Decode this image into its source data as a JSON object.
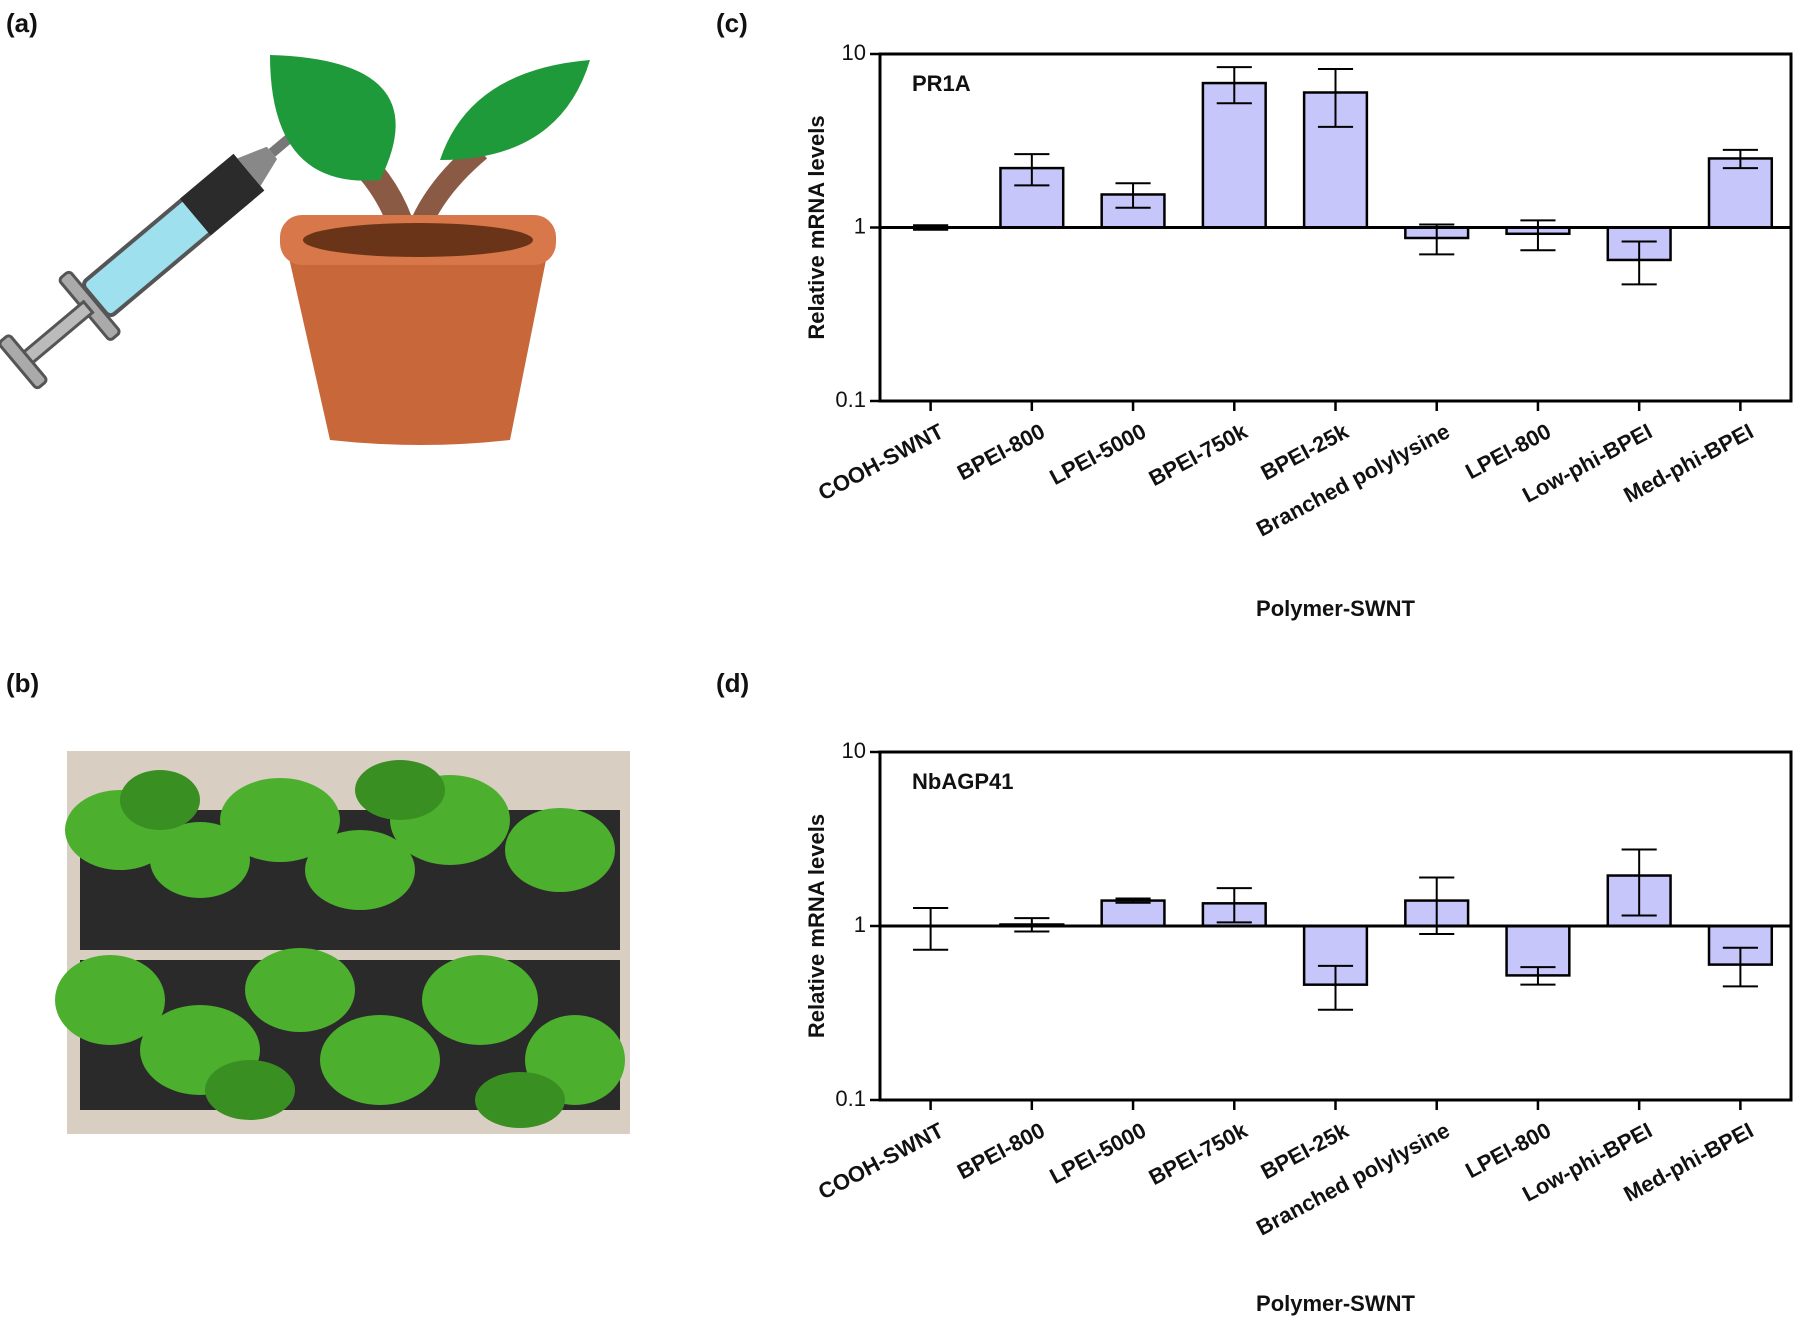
{
  "panel_labels": [
    "(a)",
    "(b)",
    "(c)",
    "(d)"
  ],
  "chart_data": [
    {
      "type": "bar",
      "title": "PR1A",
      "xlabel": "Polymer-SWNT",
      "ylabel": "Relative mRNA levels",
      "categories": [
        "COOH-SWNT",
        "BPEI-800",
        "LPEI-5000",
        "BPEI-750k",
        "BPEI-25k",
        "Branched polylysine",
        "LPEI-800",
        "Low-phi-BPEI",
        "Med-phi-BPEI"
      ],
      "values": [
        1.0,
        2.2,
        1.55,
        6.8,
        6.0,
        0.87,
        0.92,
        0.65,
        2.5
      ],
      "errors": [
        0.03,
        0.45,
        0.25,
        1.6,
        2.2,
        0.17,
        0.18,
        0.18,
        0.3
      ],
      "color": "#c6c6fa",
      "baseline": 1,
      "log": true,
      "ylim": [
        0.1,
        10
      ],
      "yticks": [
        0.1,
        1,
        10
      ]
    },
    {
      "type": "bar",
      "title": "NbAGP41",
      "xlabel": "Polymer-SWNT",
      "ylabel": "Relative mRNA levels",
      "categories": [
        "COOH-SWNT",
        "BPEI-800",
        "LPEI-5000",
        "BPEI-750k",
        "BPEI-25k",
        "Branched polylysine",
        "LPEI-800",
        "Low-phi-BPEI",
        "Med-phi-BPEI"
      ],
      "values": [
        1.0,
        1.02,
        1.4,
        1.35,
        0.46,
        1.4,
        0.52,
        1.95,
        0.6
      ],
      "errors": [
        0.27,
        0.09,
        0.04,
        0.3,
        0.13,
        0.5,
        0.06,
        0.8,
        0.15
      ],
      "color": "#c6c6fa",
      "baseline": 1,
      "log": true,
      "ylim": [
        0.1,
        10
      ],
      "yticks": [
        0.1,
        1,
        10
      ]
    }
  ]
}
